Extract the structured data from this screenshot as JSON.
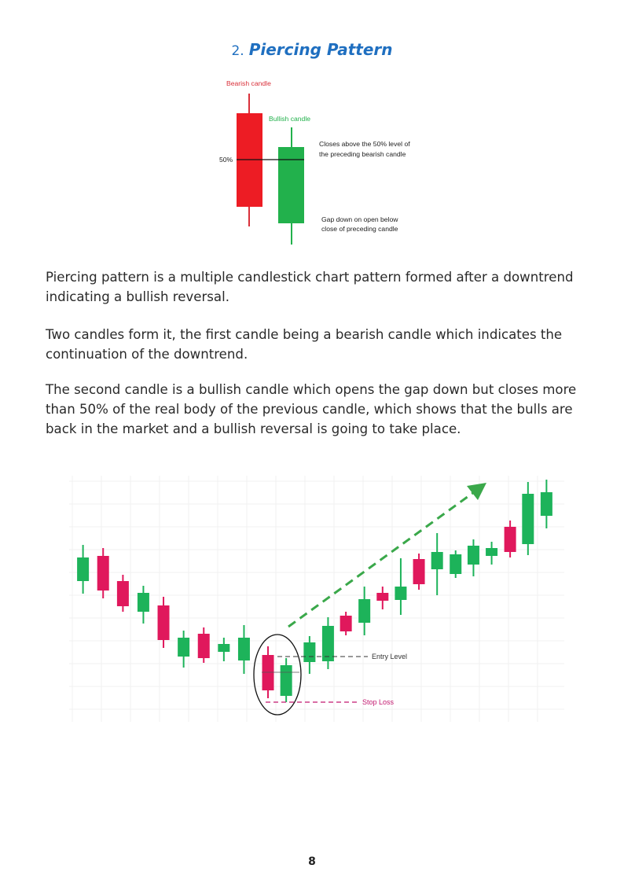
{
  "heading": {
    "number": "2.",
    "title": "Piercing Pattern"
  },
  "diagram": {
    "bearish_label": "Bearish candle",
    "bullish_label": "Bullish candle",
    "level_label": "50%",
    "closes_note": [
      "Closes above the 50% level of",
      "the preceding bearish candle"
    ],
    "gap_note": [
      "Gap down on open below",
      "close of preceding candle"
    ],
    "colors": {
      "bearish": "#ed1c24",
      "bullish": "#22b14c"
    }
  },
  "paragraphs": [
    [
      "Piercing pattern is a multiple candlestick chart pattern formed after a downtrend",
      "indicating a bullish reversal."
    ],
    [
      "Two candles form it, the first candle being a bearish candle which indicates the",
      "continuation of the downtrend."
    ],
    [
      "The second candle is a bullish candle which opens the gap down but closes more",
      "than 50% of the real body of the previous candle, which shows that the bulls are",
      "back in the market and a bullish reversal is going to take place."
    ]
  ],
  "illustration": {
    "entry_label": "Entry Level",
    "stop_label": "Stop Loss",
    "candle_directions": [
      "up",
      "down",
      "down",
      "up",
      "down",
      "up",
      "down",
      "up",
      "up",
      "down",
      "up",
      "up",
      "up",
      "down",
      "up",
      "down",
      "up",
      "down",
      "up",
      "up",
      "up",
      "up",
      "down",
      "up",
      "up"
    ],
    "colors": {
      "up": "#1db35a",
      "down": "#e0185c",
      "trend_arrow": "#3aa84a",
      "stop": "#c2186f"
    }
  },
  "page_number": "8"
}
